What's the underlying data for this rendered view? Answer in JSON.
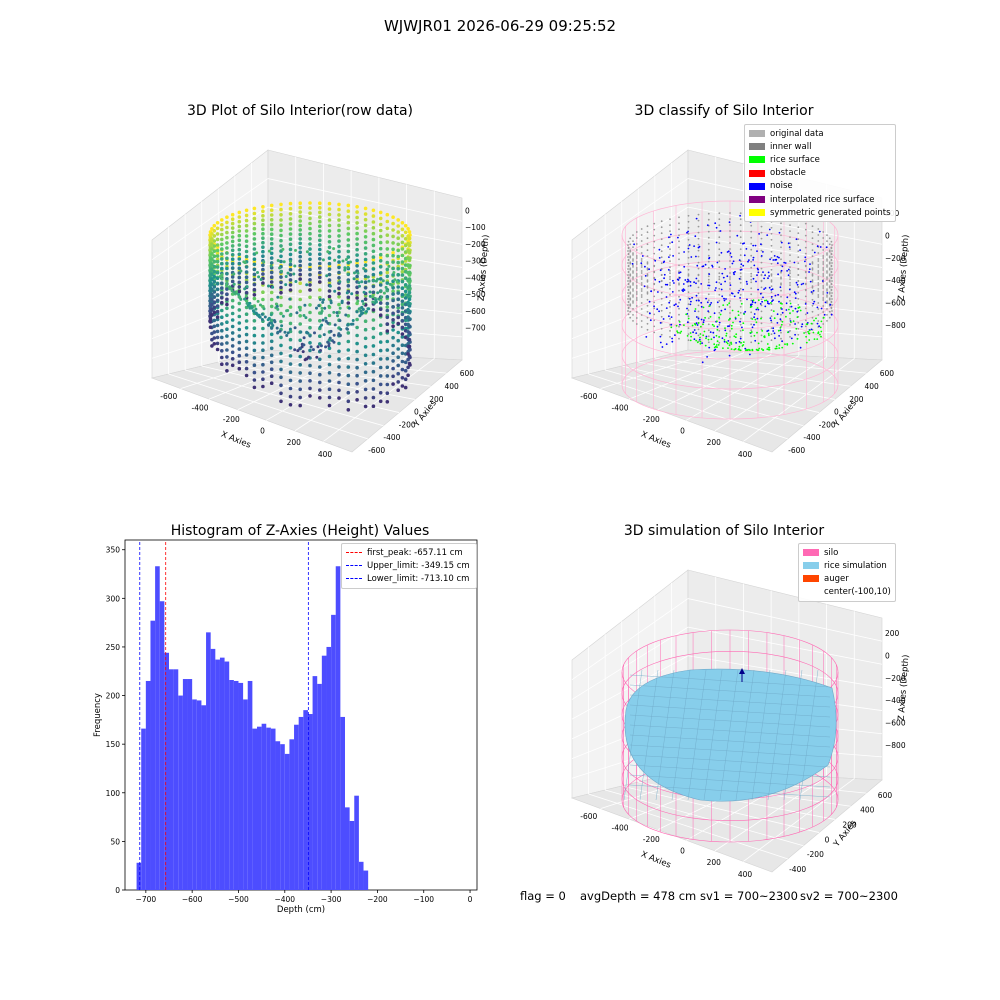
{
  "figure_title": "WJWJR01 2026-06-29 09:25:52",
  "colors": {
    "histogram_bar": "#4d4dff",
    "peak_line": "#ff0000",
    "limit_line": "#0000ff",
    "silo_wire": "#ff69b4",
    "rice": "#87ceeb",
    "auger": "#ff4500"
  },
  "panels": {
    "raw": {
      "title": "3D Plot of Silo Interior(row data)",
      "xlabel": "X Axies",
      "ylabel": "Y Axies",
      "zlabel": "Z Axies (Depth)",
      "xticks": [
        "-600",
        "-400",
        "-200",
        "0",
        "200",
        "400"
      ],
      "yticks": [
        "-600",
        "-400",
        "-200",
        "0",
        "200",
        "400",
        "600"
      ],
      "zticks": [
        "0",
        "−100",
        "−200",
        "−300",
        "−400",
        "−500",
        "−600",
        "−700"
      ],
      "colormap": "viridis"
    },
    "classify": {
      "title": "3D classify of Silo Interior",
      "xlabel": "X Axies",
      "ylabel": "Y Axies",
      "zlabel": "Z Axies (Depth)",
      "xticks": [
        "-600",
        "-400",
        "-200",
        "0",
        "200",
        "400"
      ],
      "yticks": [
        "-600",
        "-400",
        "-200",
        "0",
        "200",
        "400",
        "600"
      ],
      "zticks": [
        "200",
        "0",
        "−200",
        "−400",
        "−600",
        "−800"
      ],
      "legend": [
        {
          "label": "original data",
          "color": "#b0b0b0"
        },
        {
          "label": "inner wall",
          "color": "#808080"
        },
        {
          "label": "rice surface",
          "color": "#00ff00"
        },
        {
          "label": "obstacle",
          "color": "#ff0000"
        },
        {
          "label": "noise",
          "color": "#0000ff"
        },
        {
          "label": "interpolated rice surface",
          "color": "#800080"
        },
        {
          "label": "symmetric generated points",
          "color": "#ffff00"
        }
      ]
    },
    "histogram": {
      "title": "Histogram of Z-Axies (Height) Values",
      "xlabel": "Depth (cm)",
      "ylabel": "Frequency",
      "legend": [
        {
          "label": "first_peak: -657.11 cm",
          "color": "#ff0000"
        },
        {
          "label": "Upper_limit: -349.15 cm",
          "color": "#0000ff"
        },
        {
          "label": "Lower_limit: -713.10 cm",
          "color": "#0000ff"
        }
      ]
    },
    "simulation": {
      "title": "3D simulation of Silo Interior",
      "xlabel": "X Axies",
      "ylabel": "Y Axies",
      "zlabel": "Z Axies (Depth)",
      "xticks": [
        "-600",
        "-400",
        "-200",
        "0",
        "200",
        "400"
      ],
      "yticks": [
        "-400",
        "-200",
        "0",
        "200",
        "400",
        "600"
      ],
      "zticks": [
        "200",
        "0",
        "−200",
        "−400",
        "−600",
        "−800"
      ],
      "legend": [
        {
          "label": "silo",
          "color": "#ff69b4"
        },
        {
          "label": "rice simulation",
          "color": "#87ceeb"
        },
        {
          "label": "auger",
          "color": "#ff4500"
        },
        {
          "label": "center(-100,10)",
          "color": ""
        }
      ]
    }
  },
  "status": {
    "flag": "flag = 0",
    "avg_depth": "avgDepth = 478 cm",
    "sv1": "sv1 = 700~2300",
    "sv2": "sv2 = 700~2300"
  },
  "chart_data": [
    {
      "type": "bar",
      "title": "Histogram of Z-Axies (Height) Values",
      "xlabel": "Depth (cm)",
      "ylabel": "Frequency",
      "xlim": [
        -745,
        15
      ],
      "ylim": [
        0,
        360
      ],
      "xticks": [
        -700,
        -600,
        -500,
        -400,
        -300,
        -200,
        -100,
        0
      ],
      "yticks": [
        0,
        50,
        100,
        150,
        200,
        250,
        300,
        350
      ],
      "bin_width": 10,
      "bin_start": -720,
      "values": [
        28,
        166,
        215,
        277,
        333,
        297,
        244,
        227,
        227,
        200,
        217,
        217,
        196,
        195,
        190,
        265,
        248,
        237,
        239,
        235,
        216,
        215,
        213,
        196,
        215,
        166,
        168,
        171,
        167,
        166,
        153,
        150,
        140,
        155,
        170,
        178,
        185,
        181,
        220,
        212,
        241,
        250,
        283,
        333,
        178,
        85,
        71,
        97,
        29,
        20
      ],
      "vlines": [
        {
          "label": "first_peak: -657.11 cm",
          "x": -657.11,
          "color": "#ff0000"
        },
        {
          "label": "Upper_limit: -349.15 cm",
          "x": -349.15,
          "color": "#0000ff"
        },
        {
          "label": "Lower_limit: -713.10 cm",
          "x": -713.1,
          "color": "#0000ff"
        }
      ]
    }
  ]
}
